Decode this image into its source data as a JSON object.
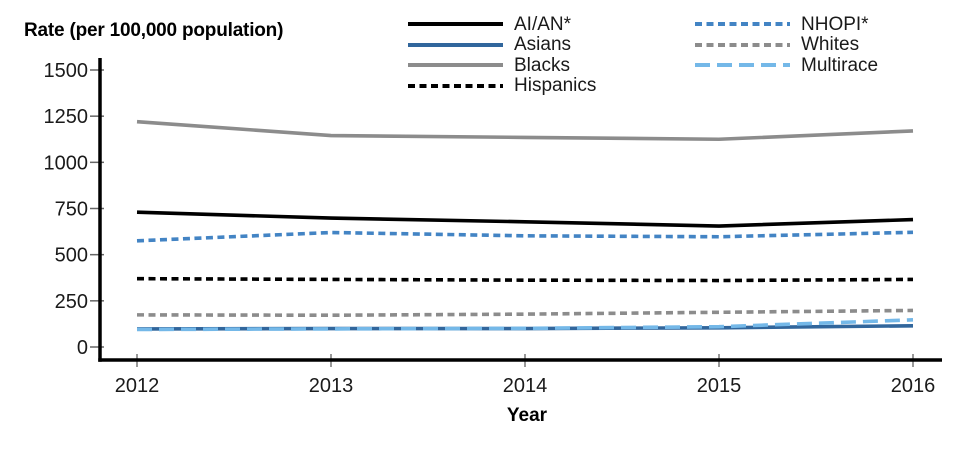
{
  "chart_data": {
    "type": "line",
    "ylabel": "Rate (per 100,000 population)",
    "xlabel": "Year",
    "x": [
      2012,
      2013,
      2014,
      2015,
      2016
    ],
    "x_tick_labels": [
      "2012",
      "2013",
      "2014",
      "2015",
      "2016"
    ],
    "y_ticks": [
      0,
      250,
      500,
      750,
      1000,
      1250,
      1500
    ],
    "y_tick_labels": [
      "0",
      "250",
      "500",
      "750",
      "1000",
      "1250",
      "1500"
    ],
    "ylim": [
      0,
      1500
    ],
    "grid": false,
    "legend_position": "top",
    "legend_columns": [
      [
        "AI/AN*",
        "Asians",
        "Blacks",
        "Hispanics"
      ],
      [
        "NHOPI*",
        "Whites",
        "Multirace"
      ]
    ],
    "series": [
      {
        "name": "AI/AN*",
        "color": "#000000",
        "style": "solid",
        "values": [
          730,
          698,
          678,
          655,
          690
        ]
      },
      {
        "name": "Asians",
        "color": "#31669c",
        "style": "solid",
        "values": [
          98,
          100,
          100,
          104,
          115
        ]
      },
      {
        "name": "Blacks",
        "color": "#8c8c8c",
        "style": "solid",
        "values": [
          1220,
          1145,
          1135,
          1125,
          1170
        ]
      },
      {
        "name": "Hispanics",
        "color": "#000000",
        "style": "short-dash",
        "values": [
          370,
          366,
          362,
          360,
          366
        ]
      },
      {
        "name": "NHOPI*",
        "color": "#4384c4",
        "style": "short-dash",
        "values": [
          575,
          620,
          602,
          597,
          621
        ]
      },
      {
        "name": "Whites",
        "color": "#8c8c8c",
        "style": "short-dash",
        "values": [
          174,
          172,
          178,
          188,
          198
        ]
      },
      {
        "name": "Multirace",
        "color": "#74b8e8",
        "style": "long-dash",
        "values": [
          95,
          98,
          101,
          110,
          147
        ]
      }
    ],
    "colors": {
      "axis": "#000000",
      "tick": "#666666",
      "label_text": "#1a1a1a"
    }
  }
}
